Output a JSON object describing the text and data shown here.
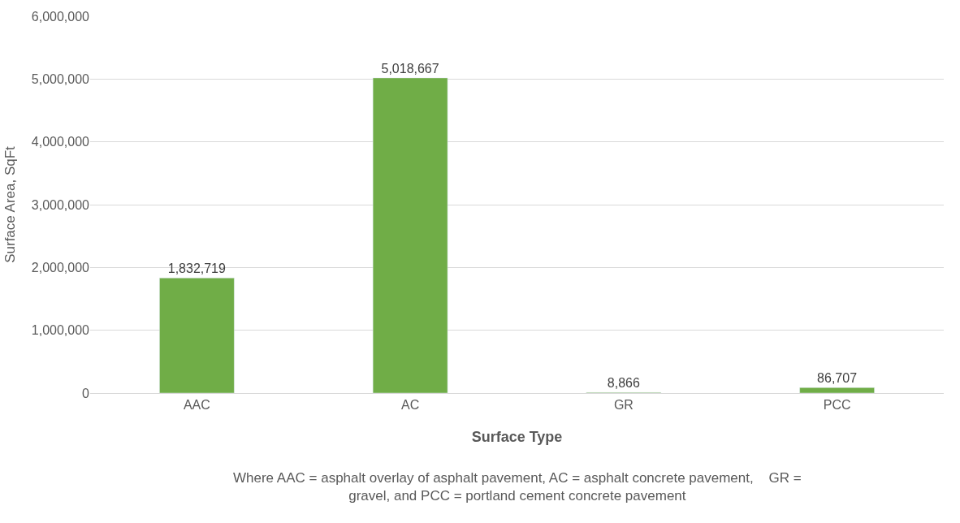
{
  "chart_data": {
    "type": "bar",
    "categories": [
      "AAC",
      "AC",
      "GR",
      "PCC"
    ],
    "values": [
      1832719,
      5018667,
      8866,
      86707
    ],
    "color": "#70ad47",
    "xlabel": "Surface Type",
    "ylabel": "Surface Area, SqFt",
    "ylim": [
      0,
      6000000
    ],
    "yticks": [
      {
        "value": 0,
        "label": "0"
      },
      {
        "value": 1000000,
        "label": "1,000,000"
      },
      {
        "value": 2000000,
        "label": "2,000,000"
      },
      {
        "value": 3000000,
        "label": "3,000,000"
      },
      {
        "value": 4000000,
        "label": "4,000,000"
      },
      {
        "value": 5000000,
        "label": "5,000,000"
      },
      {
        "value": 6000000,
        "label": "6,000,000"
      }
    ],
    "grid": "y",
    "value_labels": [
      "1,832,719",
      "5,018,667",
      "8,866",
      "86,707"
    ],
    "annotations": [
      "Where AAC = asphalt overlay of asphalt pavement, AC = asphalt concrete pavement,    GR = gravel, and PCC = portland cement concrete pavement"
    ]
  }
}
